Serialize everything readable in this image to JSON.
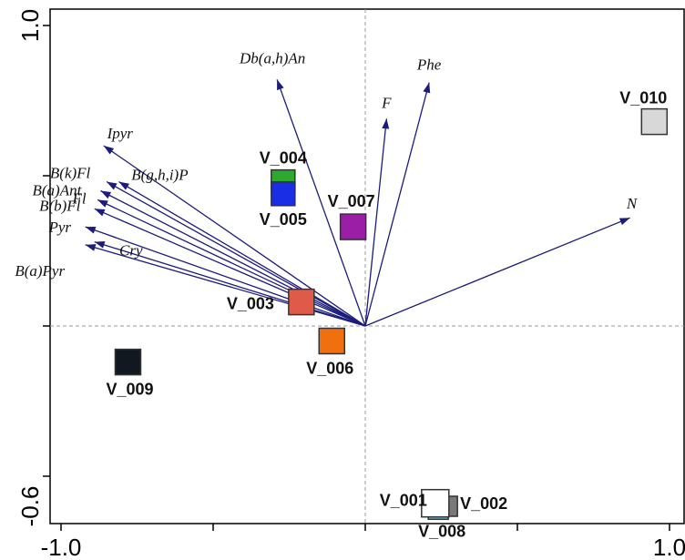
{
  "chart_data": {
    "type": "scatter",
    "title": "",
    "xlabel": "",
    "ylabel": "",
    "xlim": [
      -1.0,
      1.0
    ],
    "ylim": [
      -0.6,
      1.0
    ],
    "x_tick_labels": [
      "-1.0",
      "1.0"
    ],
    "y_tick_labels": [
      "1.0",
      "-0.6"
    ],
    "grid": false,
    "zero_lines": true,
    "vector_color": "#1c1c7a",
    "vectors": [
      {
        "label": "Db(a,h)An",
        "x": -0.29,
        "y": 0.82
      },
      {
        "label": "Phe",
        "x": 0.21,
        "y": 0.81
      },
      {
        "label": "F",
        "x": 0.07,
        "y": 0.69
      },
      {
        "label": "N",
        "x": 0.87,
        "y": 0.36
      },
      {
        "label": "Ipyr",
        "x": -0.86,
        "y": 0.6
      },
      {
        "label": "B(k)Fl",
        "x": -0.85,
        "y": 0.48
      },
      {
        "label": "B(g,h,i)P",
        "x": -0.81,
        "y": 0.48
      },
      {
        "label": "B(a)Ant",
        "x": -0.87,
        "y": 0.45
      },
      {
        "label": "Fl",
        "x": -0.88,
        "y": 0.42
      },
      {
        "label": "B(b)Fl",
        "x": -0.89,
        "y": 0.39
      },
      {
        "label": "Pyr",
        "x": -0.92,
        "y": 0.33
      },
      {
        "label": "Cry",
        "x": -0.89,
        "y": 0.28
      },
      {
        "label": "B(a)Pyr",
        "x": -0.92,
        "y": 0.27
      }
    ],
    "sites": [
      {
        "name": "V_001",
        "x": 0.23,
        "y": -0.59,
        "color": "#ffffff"
      },
      {
        "name": "V_002",
        "x": 0.27,
        "y": -0.6,
        "color": "#7a7a7a"
      },
      {
        "name": "V_003",
        "x": -0.21,
        "y": 0.08,
        "color": "#e05a4a"
      },
      {
        "name": "V_004",
        "x": -0.27,
        "y": 0.48,
        "color": "#2ea82e"
      },
      {
        "name": "V_005",
        "x": -0.27,
        "y": 0.44,
        "color": "#1a2ee6"
      },
      {
        "name": "V_006",
        "x": -0.11,
        "y": -0.05,
        "color": "#f07010"
      },
      {
        "name": "V_007",
        "x": -0.04,
        "y": 0.33,
        "color": "#9b1fa6"
      },
      {
        "name": "V_008",
        "x": 0.24,
        "y": -0.61,
        "color": "#5fc4e6"
      },
      {
        "name": "V_009",
        "x": -0.78,
        "y": -0.12,
        "color": "#111820"
      },
      {
        "name": "V_010",
        "x": 0.95,
        "y": 0.68,
        "color": "#d8d8d8"
      }
    ]
  }
}
